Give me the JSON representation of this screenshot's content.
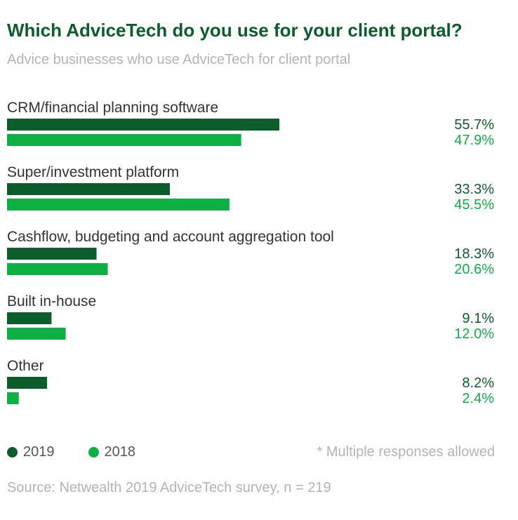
{
  "title": "Which AdviceTech do you use for your client portal?",
  "subtitle": "Advice businesses who use AdviceTech for client portal",
  "note": "* Multiple responses allowed",
  "source": "Source: Netwealth 2019 AdviceTech survey, n = 219",
  "colors": {
    "series_2019": "#0d5c2c",
    "series_2018": "#0fb043"
  },
  "chart_data": {
    "type": "bar",
    "orientation": "horizontal",
    "categories": [
      "CRM/financial planning software",
      "Super/investment platform",
      "Cashflow, budgeting and account aggregation tool",
      "Built in-house",
      "Other"
    ],
    "series": [
      {
        "name": "2019",
        "values": [
          55.7,
          33.3,
          18.3,
          9.1,
          8.2
        ]
      },
      {
        "name": "2018",
        "values": [
          47.9,
          45.5,
          20.6,
          12.0,
          2.4
        ]
      }
    ],
    "value_suffix": "%",
    "legend_position": "bottom-left"
  }
}
